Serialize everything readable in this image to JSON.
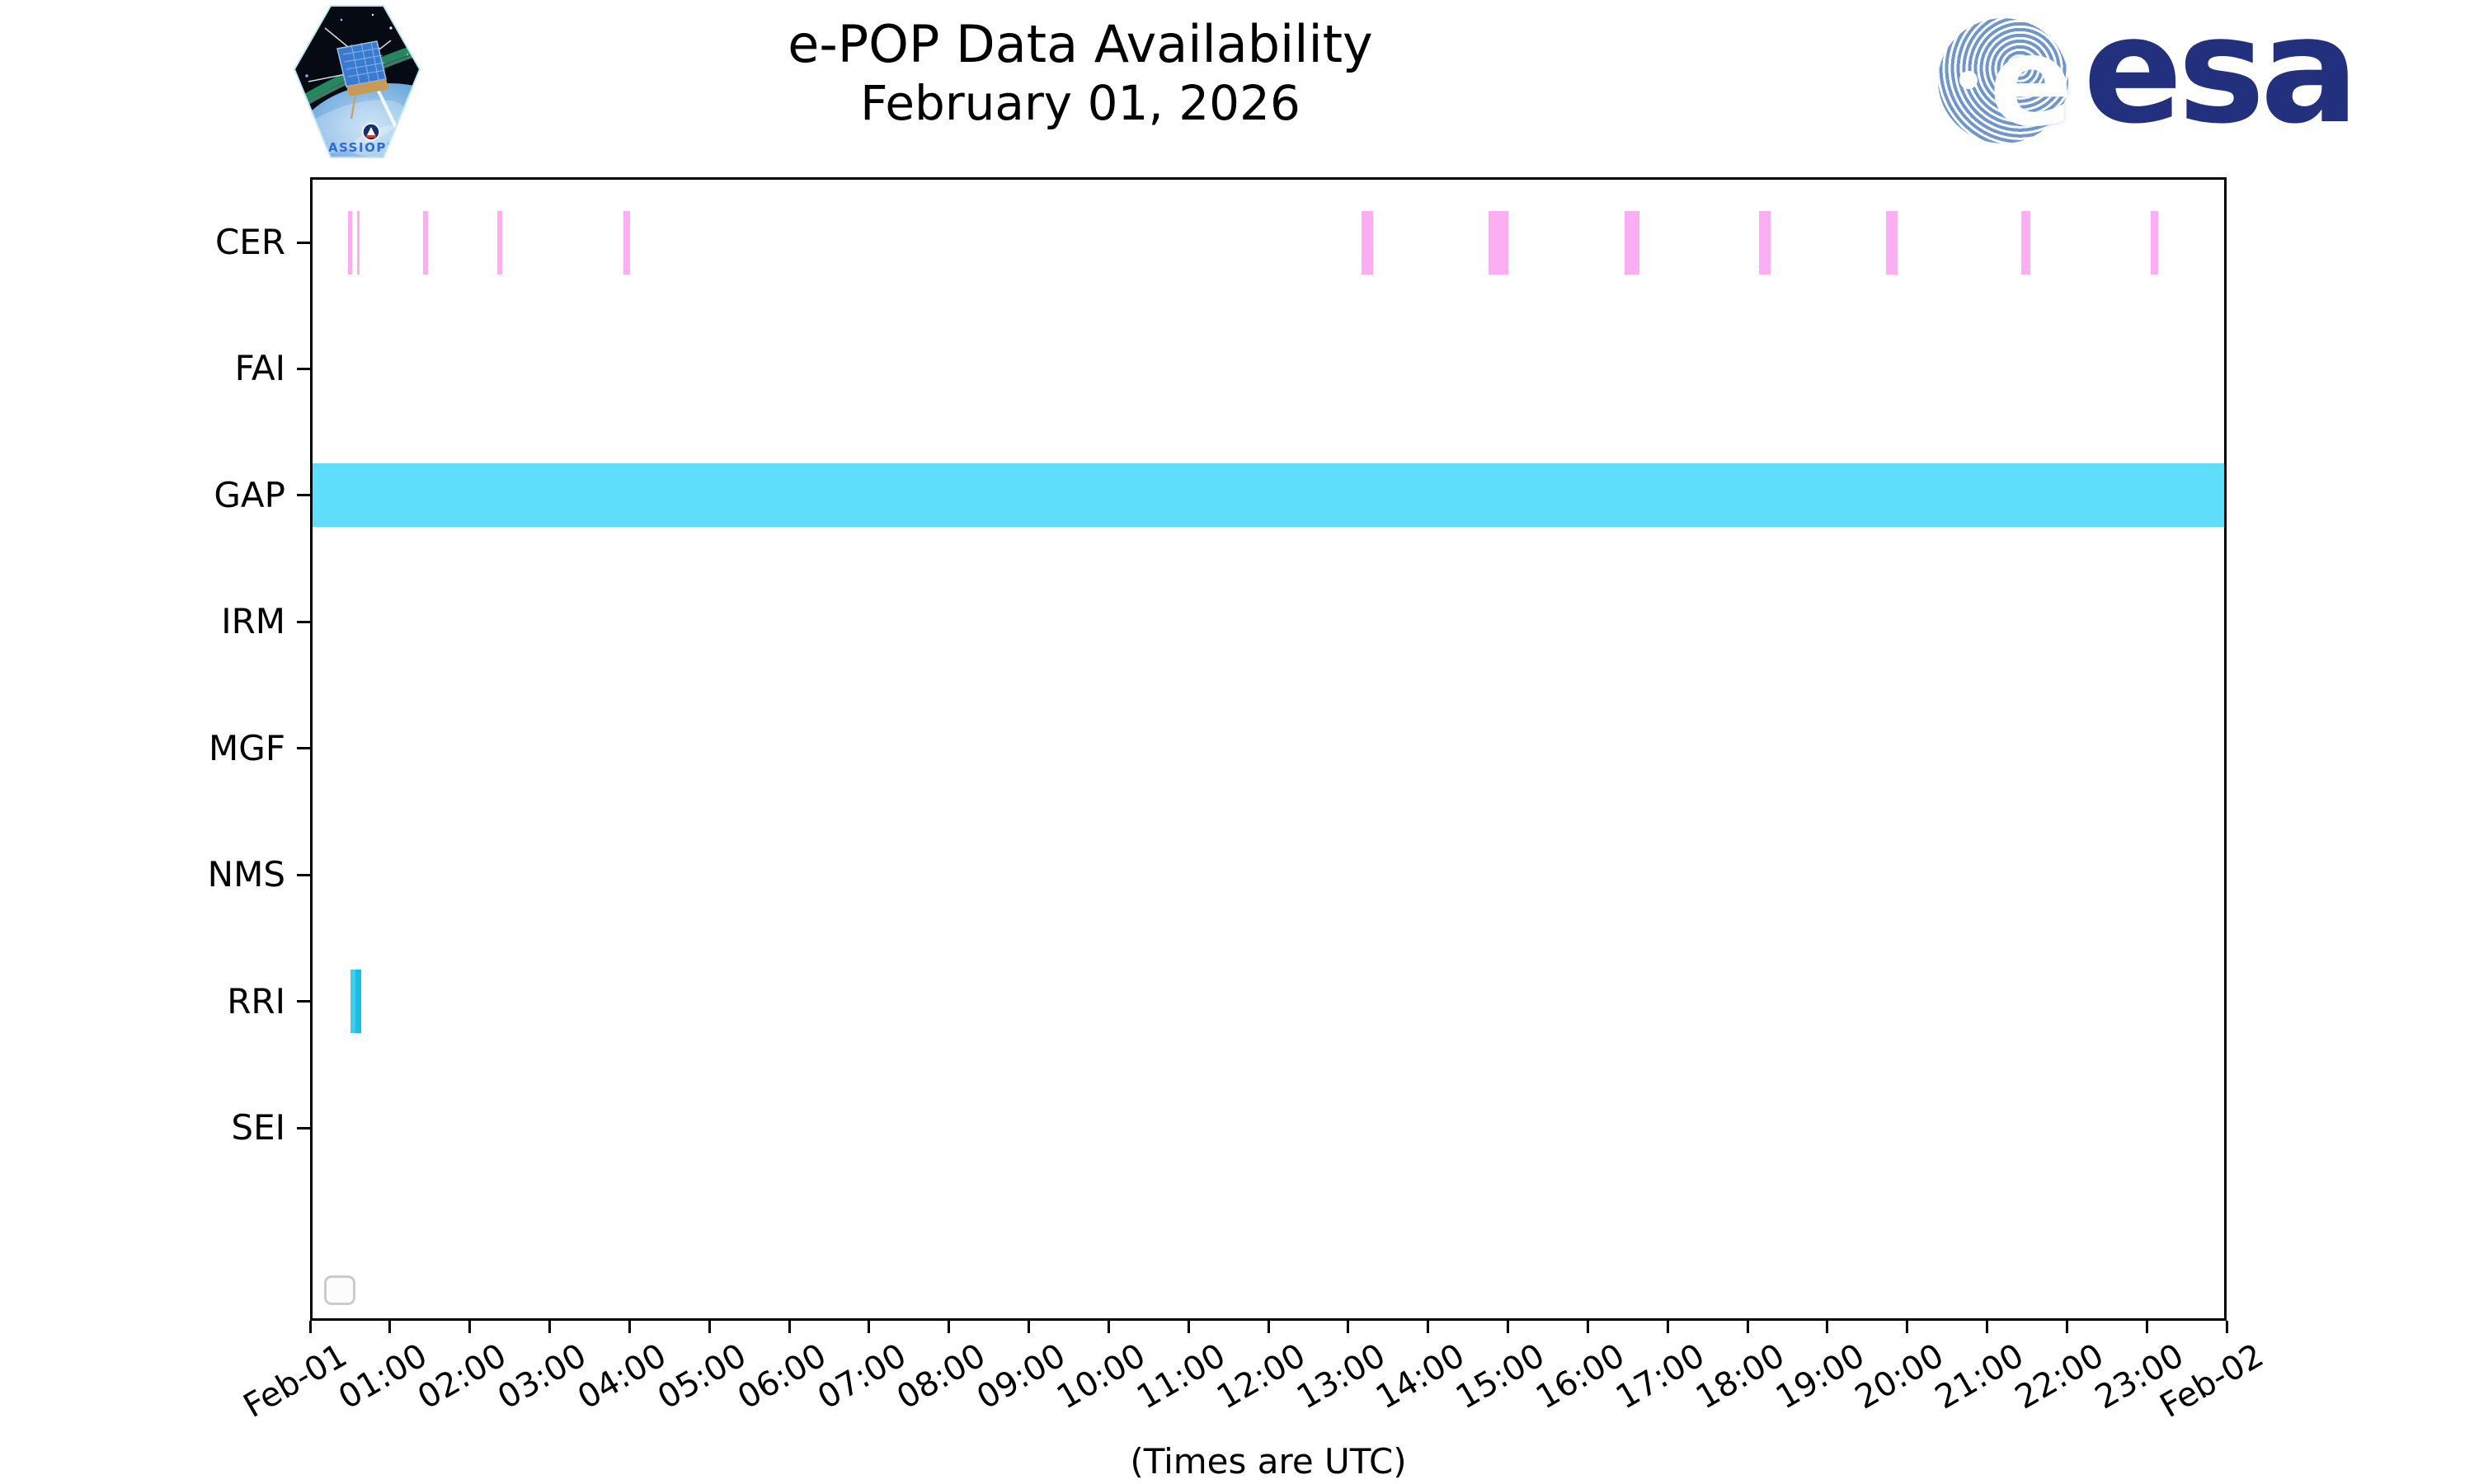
{
  "header": {
    "title": "e-POP Data Availability",
    "subtitle": "February 01, 2026",
    "cassiope_label": "CASSIOPE",
    "esa_letter": "e",
    "esa_label": "esa"
  },
  "chart_data": {
    "type": "bar",
    "variant": "horizontal availability timeline (broken-bar intervals per instrument)",
    "title": "e-POP Data Availability",
    "subtitle": "February 01, 2026",
    "xlabel": "(Times are UTC)",
    "x_unit": "hours UTC on 2026-02-01",
    "xlim": [
      0,
      24
    ],
    "grid": false,
    "legend": {
      "visible": true,
      "entries": []
    },
    "x_tick_labels": [
      "Feb-01",
      "01:00",
      "02:00",
      "03:00",
      "04:00",
      "05:00",
      "06:00",
      "07:00",
      "08:00",
      "09:00",
      "10:00",
      "11:00",
      "12:00",
      "13:00",
      "14:00",
      "15:00",
      "16:00",
      "17:00",
      "18:00",
      "19:00",
      "20:00",
      "21:00",
      "22:00",
      "23:00",
      "Feb-02"
    ],
    "rows": [
      {
        "label": "CER",
        "color": "#FBAEF1",
        "intervals": [
          [
            0.48,
            0.53
          ],
          [
            0.585,
            0.615
          ],
          [
            1.41,
            1.48
          ],
          [
            2.34,
            2.41
          ],
          [
            3.92,
            4.01
          ],
          [
            13.17,
            13.31
          ],
          [
            14.76,
            15.01
          ],
          [
            16.46,
            16.65
          ],
          [
            18.14,
            18.29
          ],
          [
            19.74,
            19.88
          ],
          [
            21.43,
            21.54
          ],
          [
            23.05,
            23.14
          ]
        ]
      },
      {
        "label": "FAI",
        "color": "#FBAEF1",
        "intervals": []
      },
      {
        "label": "GAP",
        "color": "#5EDEFA",
        "intervals": [
          [
            0,
            24
          ]
        ]
      },
      {
        "label": "IRM",
        "color": "#5EDEFA",
        "intervals": []
      },
      {
        "label": "MGF",
        "color": "#5EDEFA",
        "intervals": []
      },
      {
        "label": "NMS",
        "color": "#5EDEFA",
        "intervals": []
      },
      {
        "label": "RRI",
        "color": "#17BFE3",
        "color2": "#44CBEA",
        "intervals": [
          [
            0.51,
            0.64
          ]
        ]
      },
      {
        "label": "SEI",
        "color": "#5EDEFA",
        "intervals": []
      }
    ]
  }
}
